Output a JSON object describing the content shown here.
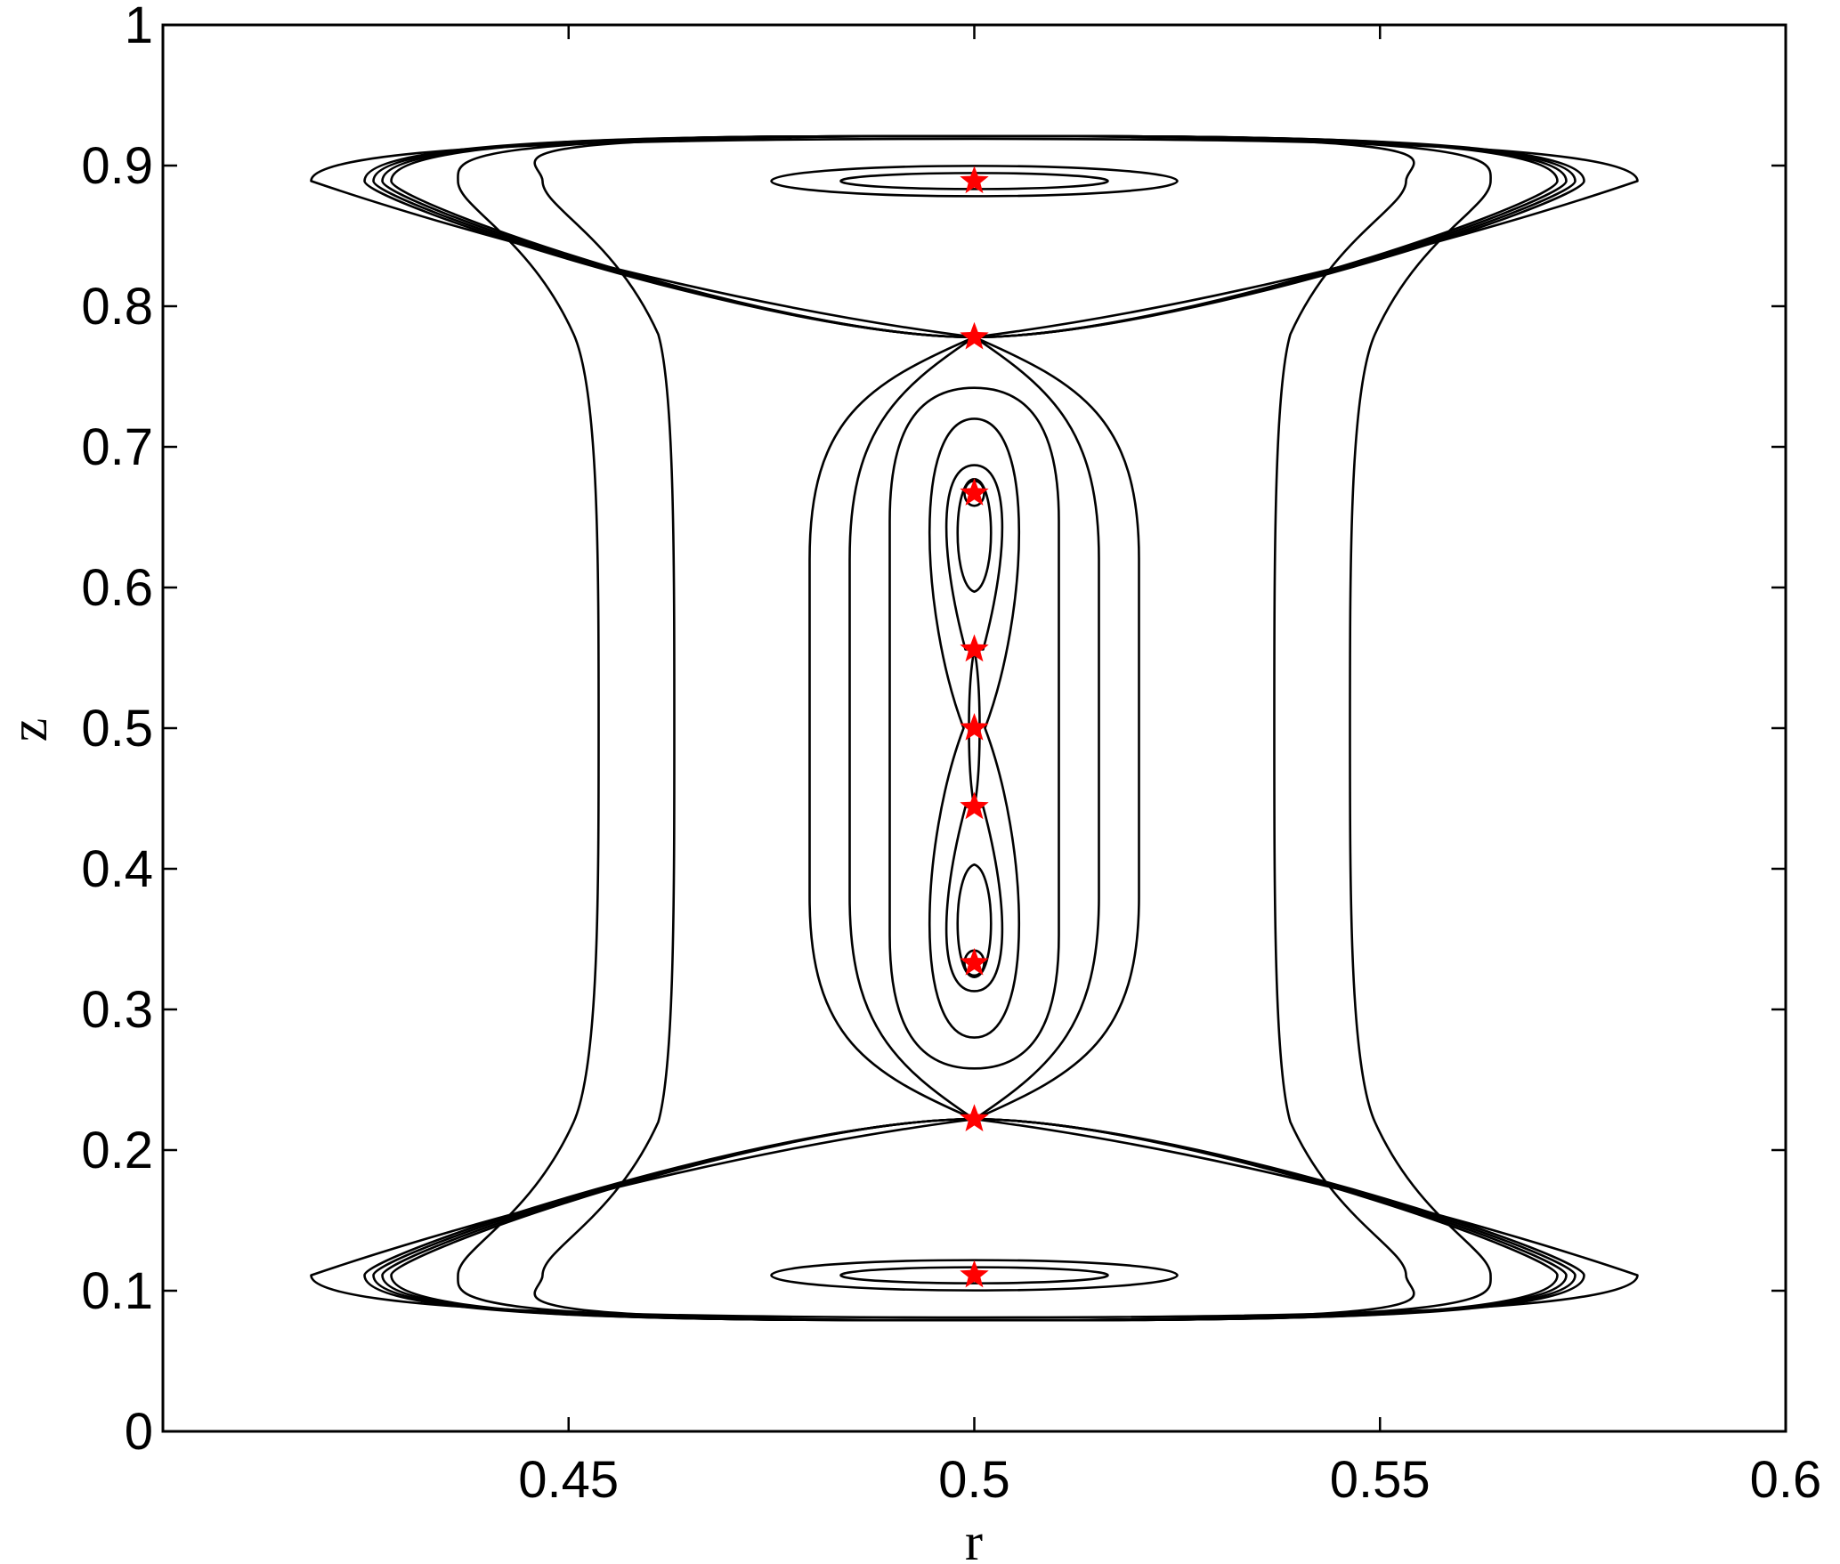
{
  "chart_data": {
    "type": "contour",
    "xlabel": "r",
    "ylabel": "z",
    "xlim": [
      0.4,
      0.6
    ],
    "ylim": [
      0,
      1
    ],
    "xticks": [
      "0.45",
      "0.5",
      "0.55",
      "0.6"
    ],
    "yticks": [
      "0",
      "0.1",
      "0.2",
      "0.3",
      "0.4",
      "0.5",
      "0.6",
      "0.7",
      "0.8",
      "0.9",
      "1"
    ],
    "grid": false,
    "line_color": "#000000",
    "marker_color": "#ff0000",
    "marker_shape": "star",
    "stagnation_points": [
      {
        "r": 0.5,
        "z": 0.889
      },
      {
        "r": 0.5,
        "z": 0.778
      },
      {
        "r": 0.5,
        "z": 0.667
      },
      {
        "r": 0.5,
        "z": 0.556
      },
      {
        "r": 0.5,
        "z": 0.5
      },
      {
        "r": 0.5,
        "z": 0.444
      },
      {
        "r": 0.5,
        "z": 0.333
      },
      {
        "r": 0.5,
        "z": 0.222
      },
      {
        "r": 0.5,
        "z": 0.111
      }
    ]
  }
}
